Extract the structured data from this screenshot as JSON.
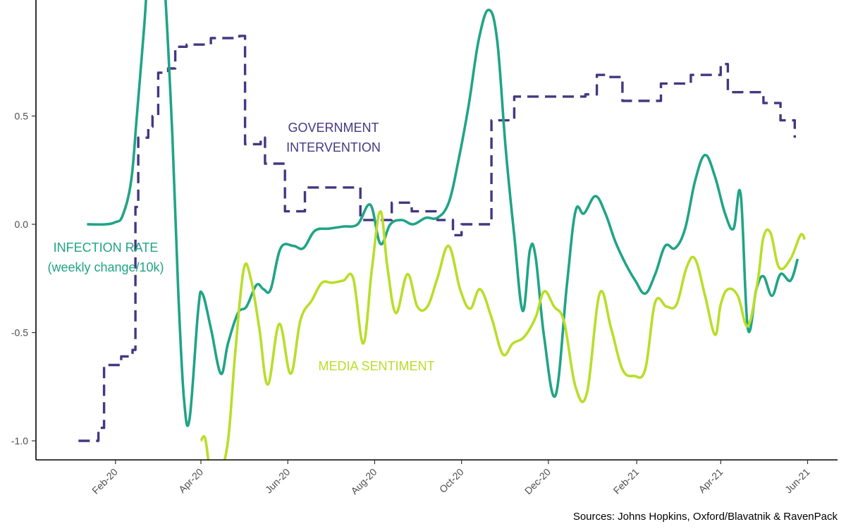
{
  "chart_data": {
    "type": "line",
    "title": "",
    "xlabel": "",
    "ylabel": "",
    "ylim": [
      -1.08,
      1.0
    ],
    "xlim": [
      "2020-01-01",
      "2021-06-15"
    ],
    "grid": false,
    "y_ticks": [
      {
        "value": -1.0,
        "label": "-1.0"
      },
      {
        "value": -0.5,
        "label": "-0.5"
      },
      {
        "value": 0.0,
        "label": "0.0"
      },
      {
        "value": 0.5,
        "label": "0.5"
      }
    ],
    "x_ticks": [
      {
        "date": "2020-02-01",
        "label": "Feb-20"
      },
      {
        "date": "2020-04-01",
        "label": "Apr-20"
      },
      {
        "date": "2020-06-01",
        "label": "Jun-20"
      },
      {
        "date": "2020-08-01",
        "label": "Aug-20"
      },
      {
        "date": "2020-10-01",
        "label": "Oct-20"
      },
      {
        "date": "2020-12-01",
        "label": "Dec-20"
      },
      {
        "date": "2021-02-01",
        "label": "Feb-21"
      },
      {
        "date": "2021-04-01",
        "label": "Apr-21"
      },
      {
        "date": "2021-06-01",
        "label": "Jun-21"
      }
    ],
    "annotations": [
      {
        "key": "government",
        "lines": [
          "GOVERNMENT",
          "INTERVENTION"
        ],
        "color": "#453781"
      },
      {
        "key": "infection",
        "lines": [
          "INFECTION RATE",
          "(weekly change/10k)"
        ],
        "color": "#20A486"
      },
      {
        "key": "media",
        "lines": [
          "MEDIA SENTIMENT"
        ],
        "color": "#B8DE29"
      }
    ],
    "source": "Sources: Johns Hopkins, Oxford/Blavatnik & RavenPack",
    "series": [
      {
        "key": "government",
        "color": "#453781",
        "dash": true,
        "step": true,
        "points": [
          [
            "2020-01-06",
            -1.0
          ],
          [
            "2020-01-15",
            -1.0
          ],
          [
            "2020-01-20",
            -0.94
          ],
          [
            "2020-01-24",
            -0.65
          ],
          [
            "2020-02-05",
            -0.61
          ],
          [
            "2020-02-13",
            -0.58
          ],
          [
            "2020-02-15",
            0.08
          ],
          [
            "2020-02-17",
            0.4
          ],
          [
            "2020-02-24",
            0.45
          ],
          [
            "2020-02-27",
            0.5
          ],
          [
            "2020-03-02",
            0.7
          ],
          [
            "2020-03-09",
            0.72
          ],
          [
            "2020-03-14",
            0.82
          ],
          [
            "2020-03-22",
            0.83
          ],
          [
            "2020-03-30",
            0.83
          ],
          [
            "2020-04-08",
            0.86
          ],
          [
            "2020-04-18",
            0.86
          ],
          [
            "2020-04-28",
            0.87
          ],
          [
            "2020-05-02",
            0.37
          ],
          [
            "2020-05-08",
            0.37
          ],
          [
            "2020-05-13",
            0.4
          ],
          [
            "2020-05-16",
            0.28
          ],
          [
            "2020-05-23",
            0.28
          ],
          [
            "2020-05-30",
            0.06
          ],
          [
            "2020-06-06",
            0.06
          ],
          [
            "2020-06-13",
            0.17
          ],
          [
            "2020-07-04",
            0.17
          ],
          [
            "2020-07-18",
            0.17
          ],
          [
            "2020-07-22",
            0.02
          ],
          [
            "2020-08-06",
            0.02
          ],
          [
            "2020-08-13",
            0.1
          ],
          [
            "2020-08-27",
            0.06
          ],
          [
            "2020-09-04",
            0.06
          ],
          [
            "2020-09-14",
            0.02
          ],
          [
            "2020-09-25",
            -0.05
          ],
          [
            "2020-10-01",
            0.0
          ],
          [
            "2020-10-15",
            0.0
          ],
          [
            "2020-10-22",
            0.48
          ],
          [
            "2020-10-31",
            0.48
          ],
          [
            "2020-11-07",
            0.59
          ],
          [
            "2020-12-04",
            0.59
          ],
          [
            "2020-12-20",
            0.59
          ],
          [
            "2020-12-27",
            0.6
          ],
          [
            "2021-01-04",
            0.69
          ],
          [
            "2021-01-11",
            0.68
          ],
          [
            "2021-01-22",
            0.57
          ],
          [
            "2021-02-04",
            0.57
          ],
          [
            "2021-02-11",
            0.57
          ],
          [
            "2021-02-18",
            0.65
          ],
          [
            "2021-03-01",
            0.65
          ],
          [
            "2021-03-11",
            0.69
          ],
          [
            "2021-03-25",
            0.69
          ],
          [
            "2021-04-01",
            0.74
          ],
          [
            "2021-04-06",
            0.61
          ],
          [
            "2021-04-22",
            0.61
          ],
          [
            "2021-05-01",
            0.56
          ],
          [
            "2021-05-08",
            0.56
          ],
          [
            "2021-05-13",
            0.48
          ],
          [
            "2021-05-20",
            0.48
          ],
          [
            "2021-05-23",
            0.4
          ]
        ]
      },
      {
        "key": "infection",
        "color": "#20A486",
        "dash": false,
        "step": false,
        "points": [
          [
            "2020-01-12",
            0.0
          ],
          [
            "2020-01-25",
            0.0
          ],
          [
            "2020-02-01",
            0.01
          ],
          [
            "2020-02-06",
            0.04
          ],
          [
            "2020-02-12",
            0.2
          ],
          [
            "2020-02-16",
            0.5
          ],
          [
            "2020-02-21",
            0.9
          ],
          [
            "2020-02-24",
            1.15
          ],
          [
            "2020-03-01",
            1.35
          ],
          [
            "2020-03-06",
            1.15
          ],
          [
            "2020-03-12",
            0.4
          ],
          [
            "2020-03-16",
            -0.3
          ],
          [
            "2020-03-20",
            -0.8
          ],
          [
            "2020-03-24",
            -0.9
          ],
          [
            "2020-03-30",
            -0.4
          ],
          [
            "2020-04-02",
            -0.32
          ],
          [
            "2020-04-08",
            -0.48
          ],
          [
            "2020-04-15",
            -0.69
          ],
          [
            "2020-04-20",
            -0.55
          ],
          [
            "2020-04-27",
            -0.41
          ],
          [
            "2020-05-03",
            -0.38
          ],
          [
            "2020-05-10",
            -0.28
          ],
          [
            "2020-05-15",
            -0.3
          ],
          [
            "2020-05-20",
            -0.3
          ],
          [
            "2020-05-27",
            -0.11
          ],
          [
            "2020-06-05",
            -0.1
          ],
          [
            "2020-06-12",
            -0.11
          ],
          [
            "2020-06-20",
            -0.03
          ],
          [
            "2020-06-30",
            -0.02
          ],
          [
            "2020-07-10",
            -0.01
          ],
          [
            "2020-07-20",
            0.0
          ],
          [
            "2020-07-29",
            0.09
          ],
          [
            "2020-08-05",
            -0.09
          ],
          [
            "2020-08-12",
            0.0
          ],
          [
            "2020-08-20",
            0.02
          ],
          [
            "2020-08-28",
            0.0
          ],
          [
            "2020-09-06",
            0.03
          ],
          [
            "2020-09-14",
            0.03
          ],
          [
            "2020-09-22",
            0.1
          ],
          [
            "2020-09-29",
            0.3
          ],
          [
            "2020-10-06",
            0.55
          ],
          [
            "2020-10-13",
            0.85
          ],
          [
            "2020-10-20",
            0.99
          ],
          [
            "2020-10-26",
            0.85
          ],
          [
            "2020-11-01",
            0.35
          ],
          [
            "2020-11-07",
            -0.05
          ],
          [
            "2020-11-13",
            -0.4
          ],
          [
            "2020-11-18",
            -0.12
          ],
          [
            "2020-11-22",
            -0.15
          ],
          [
            "2020-11-28",
            -0.52
          ],
          [
            "2020-12-06",
            -0.79
          ],
          [
            "2020-12-14",
            -0.28
          ],
          [
            "2020-12-20",
            0.06
          ],
          [
            "2020-12-26",
            0.05
          ],
          [
            "2021-01-03",
            0.13
          ],
          [
            "2021-01-10",
            0.05
          ],
          [
            "2021-01-17",
            -0.08
          ],
          [
            "2021-01-24",
            -0.18
          ],
          [
            "2021-01-31",
            -0.26
          ],
          [
            "2021-02-07",
            -0.32
          ],
          [
            "2021-02-14",
            -0.23
          ],
          [
            "2021-02-21",
            -0.1
          ],
          [
            "2021-02-28",
            -0.11
          ],
          [
            "2021-03-07",
            -0.02
          ],
          [
            "2021-03-14",
            0.2
          ],
          [
            "2021-03-21",
            0.32
          ],
          [
            "2021-03-28",
            0.22
          ],
          [
            "2021-04-04",
            0.05
          ],
          [
            "2021-04-10",
            -0.02
          ],
          [
            "2021-04-15",
            0.14
          ],
          [
            "2021-04-20",
            -0.48
          ],
          [
            "2021-04-26",
            -0.3
          ],
          [
            "2021-05-01",
            -0.24
          ],
          [
            "2021-05-07",
            -0.33
          ],
          [
            "2021-05-13",
            -0.23
          ],
          [
            "2021-05-20",
            -0.26
          ],
          [
            "2021-05-25",
            -0.16
          ]
        ]
      },
      {
        "key": "media",
        "color": "#B8DE29",
        "dash": false,
        "step": false,
        "points": [
          [
            "2020-04-01",
            -1.0
          ],
          [
            "2020-04-04",
            -0.99
          ],
          [
            "2020-04-08",
            -1.15
          ],
          [
            "2020-04-14",
            -1.15
          ],
          [
            "2020-04-20",
            -1.0
          ],
          [
            "2020-04-25",
            -0.6
          ],
          [
            "2020-05-01",
            -0.21
          ],
          [
            "2020-05-06",
            -0.25
          ],
          [
            "2020-05-12",
            -0.48
          ],
          [
            "2020-05-18",
            -0.74
          ],
          [
            "2020-05-26",
            -0.46
          ],
          [
            "2020-06-03",
            -0.69
          ],
          [
            "2020-06-10",
            -0.44
          ],
          [
            "2020-06-18",
            -0.35
          ],
          [
            "2020-06-25",
            -0.27
          ],
          [
            "2020-07-02",
            -0.27
          ],
          [
            "2020-07-10",
            -0.26
          ],
          [
            "2020-07-17",
            -0.25
          ],
          [
            "2020-07-24",
            -0.55
          ],
          [
            "2020-07-30",
            -0.21
          ],
          [
            "2020-08-05",
            0.06
          ],
          [
            "2020-08-10",
            -0.2
          ],
          [
            "2020-08-16",
            -0.41
          ],
          [
            "2020-08-24",
            -0.23
          ],
          [
            "2020-08-31",
            -0.38
          ],
          [
            "2020-09-07",
            -0.38
          ],
          [
            "2020-09-14",
            -0.25
          ],
          [
            "2020-09-22",
            -0.1
          ],
          [
            "2020-09-30",
            -0.3
          ],
          [
            "2020-10-07",
            -0.39
          ],
          [
            "2020-10-14",
            -0.3
          ],
          [
            "2020-10-22",
            -0.43
          ],
          [
            "2020-10-30",
            -0.6
          ],
          [
            "2020-11-06",
            -0.55
          ],
          [
            "2020-11-14",
            -0.52
          ],
          [
            "2020-11-22",
            -0.43
          ],
          [
            "2020-11-28",
            -0.31
          ],
          [
            "2020-12-05",
            -0.38
          ],
          [
            "2020-12-12",
            -0.45
          ],
          [
            "2020-12-20",
            -0.75
          ],
          [
            "2020-12-28",
            -0.78
          ],
          [
            "2021-01-06",
            -0.32
          ],
          [
            "2021-01-14",
            -0.48
          ],
          [
            "2021-01-22",
            -0.67
          ],
          [
            "2021-01-30",
            -0.7
          ],
          [
            "2021-02-07",
            -0.67
          ],
          [
            "2021-02-14",
            -0.36
          ],
          [
            "2021-02-22",
            -0.38
          ],
          [
            "2021-03-01",
            -0.37
          ],
          [
            "2021-03-08",
            -0.2
          ],
          [
            "2021-03-14",
            -0.16
          ],
          [
            "2021-03-21",
            -0.33
          ],
          [
            "2021-03-28",
            -0.51
          ],
          [
            "2021-04-01",
            -0.37
          ],
          [
            "2021-04-06",
            -0.3
          ],
          [
            "2021-04-13",
            -0.33
          ],
          [
            "2021-04-20",
            -0.47
          ],
          [
            "2021-04-27",
            -0.26
          ],
          [
            "2021-05-01",
            -0.06
          ],
          [
            "2021-05-06",
            -0.04
          ],
          [
            "2021-05-12",
            -0.2
          ],
          [
            "2021-05-20",
            -0.16
          ],
          [
            "2021-05-27",
            -0.05
          ],
          [
            "2021-05-30",
            -0.07
          ]
        ]
      }
    ]
  }
}
